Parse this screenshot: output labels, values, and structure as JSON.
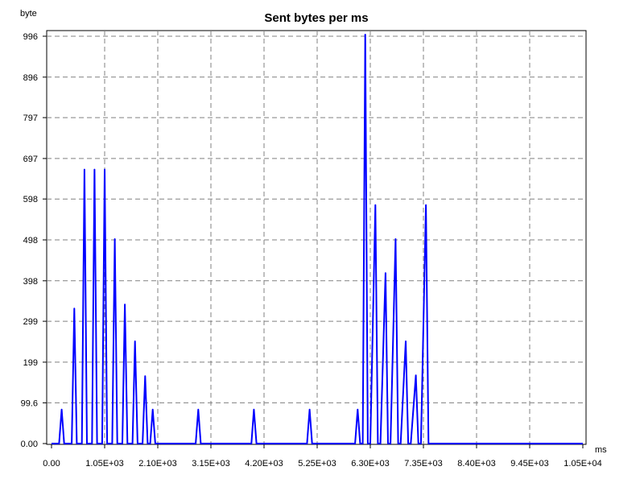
{
  "chart_data": {
    "type": "line",
    "title": "Sent bytes per ms",
    "ylabel": "byte",
    "xlabel": "ms",
    "xlim": [
      0,
      10500
    ],
    "ylim": [
      0,
      996
    ],
    "grid": true,
    "legend": "none",
    "line_color": "#0000ff",
    "x_tick_values": [
      0,
      1050,
      2100,
      3150,
      4200,
      5250,
      6300,
      7350,
      8400,
      9450,
      10500
    ],
    "x_tick_labels": [
      "0.00",
      "1.05E+03",
      "2.10E+03",
      "3.15E+03",
      "4.20E+03",
      "5.25E+03",
      "6.30E+03",
      "7.35E+03",
      "8.40E+03",
      "9.45E+03",
      "1.05E+04"
    ],
    "y_tick_values": [
      0,
      99.6,
      199,
      299,
      398,
      498,
      598,
      697,
      797,
      896,
      996
    ],
    "y_tick_labels": [
      "0.00",
      "99.6",
      "199",
      "299",
      "398",
      "498",
      "598",
      "697",
      "797",
      "896",
      "996"
    ],
    "series": [
      {
        "x": [
          0,
          150,
          200,
          250,
          400,
          450,
          500,
          600,
          650,
          700,
          800,
          850,
          900,
          1000,
          1050,
          1100,
          1200,
          1250,
          1300,
          1400,
          1450,
          1500,
          1600,
          1650,
          1700,
          1800,
          1850,
          1900,
          1950,
          2000,
          2050,
          2850,
          2900,
          2950,
          3950,
          4000,
          4050,
          5050,
          5100,
          5150,
          6000,
          6050,
          6100,
          6150,
          6200,
          6250,
          6300,
          6400,
          6450,
          6500,
          6600,
          6650,
          6700,
          6800,
          6850,
          6900,
          7000,
          7050,
          7100,
          7200,
          7250,
          7300,
          7400,
          7450,
          7500,
          7600,
          7650,
          7700,
          10500
        ],
        "y": [
          0,
          0,
          83,
          0,
          0,
          330,
          0,
          0,
          670,
          0,
          0,
          670,
          0,
          0,
          670,
          0,
          0,
          500,
          0,
          0,
          340,
          0,
          0,
          250,
          0,
          0,
          165,
          0,
          0,
          83,
          0,
          0,
          83,
          0,
          0,
          83,
          0,
          0,
          83,
          0,
          0,
          83,
          0,
          0,
          1000,
          0,
          0,
          583,
          0,
          0,
          417,
          0,
          0,
          500,
          0,
          0,
          250,
          0,
          0,
          167,
          0,
          0,
          583,
          0,
          0,
          0,
          0,
          0,
          0
        ]
      }
    ]
  }
}
